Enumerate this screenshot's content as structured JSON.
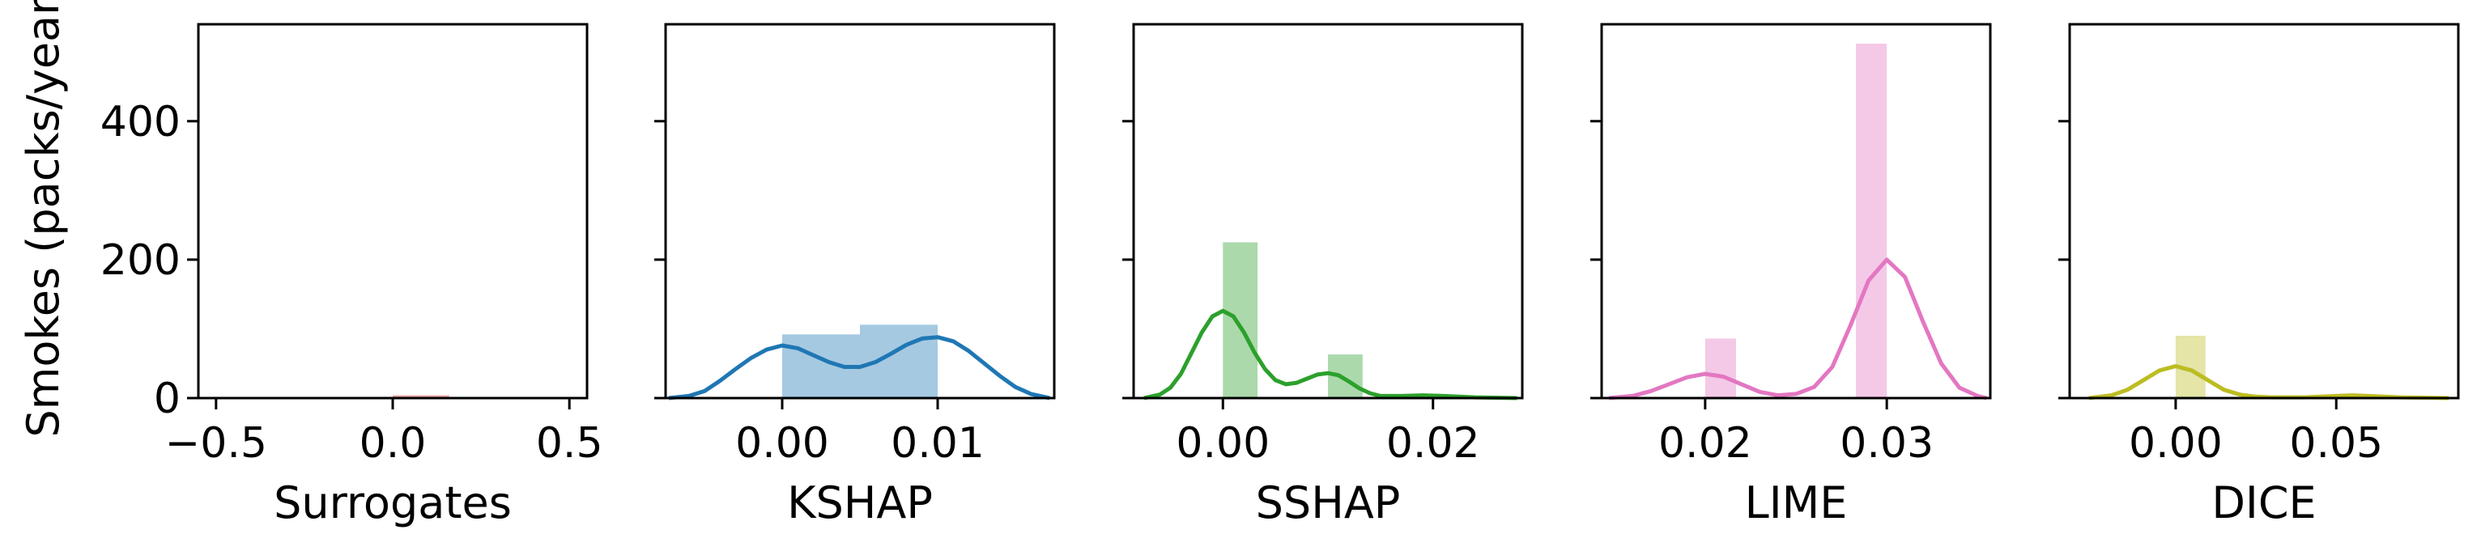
{
  "chart_data": {
    "type": "bar",
    "shared_ylabel": "Smokes (packs/year)",
    "ylim": [
      0,
      540
    ],
    "yticks": [
      0,
      200,
      400
    ],
    "panels": [
      {
        "xlabel": "Surrogates",
        "color": "#d62728",
        "xlim": [
          -0.55,
          0.55
        ],
        "xticks": [
          -0.5,
          0.0,
          0.5
        ],
        "xtick_labels": [
          "−0.5",
          "0.0",
          "0.5"
        ],
        "bars": [
          {
            "x0": 0.0,
            "x1": 0.16,
            "value": 4
          }
        ],
        "kde": []
      },
      {
        "xlabel": "KSHAP",
        "color": "#1f77b4",
        "xlim": [
          -0.0075,
          0.0175
        ],
        "xticks": [
          0.0,
          0.01
        ],
        "xtick_labels": [
          "0.00",
          "0.01"
        ],
        "bars": [
          {
            "x0": 0.0,
            "x1": 0.005,
            "value": 92
          },
          {
            "x0": 0.005,
            "x1": 0.01,
            "value": 106
          }
        ],
        "kde": [
          [
            -0.0073,
            0
          ],
          [
            -0.006,
            3
          ],
          [
            -0.005,
            10
          ],
          [
            -0.004,
            25
          ],
          [
            -0.003,
            42
          ],
          [
            -0.002,
            58
          ],
          [
            -0.001,
            70
          ],
          [
            0.0,
            76
          ],
          [
            0.001,
            72
          ],
          [
            0.002,
            62
          ],
          [
            0.003,
            52
          ],
          [
            0.004,
            45
          ],
          [
            0.005,
            45
          ],
          [
            0.006,
            52
          ],
          [
            0.007,
            64
          ],
          [
            0.008,
            77
          ],
          [
            0.009,
            86
          ],
          [
            0.01,
            88
          ],
          [
            0.011,
            82
          ],
          [
            0.012,
            68
          ],
          [
            0.013,
            50
          ],
          [
            0.014,
            32
          ],
          [
            0.015,
            16
          ],
          [
            0.016,
            6
          ],
          [
            0.0172,
            0
          ]
        ]
      },
      {
        "xlabel": "SSHAP",
        "color": "#2ca02c",
        "xlim": [
          -0.0085,
          0.0285
        ],
        "xticks": [
          0.0,
          0.02
        ],
        "xtick_labels": [
          "0.00",
          "0.02"
        ],
        "bars": [
          {
            "x0": 0.0,
            "x1": 0.0033,
            "value": 225
          },
          {
            "x0": 0.01,
            "x1": 0.0133,
            "value": 63
          }
        ],
        "kde": [
          [
            -0.0075,
            0
          ],
          [
            -0.006,
            5
          ],
          [
            -0.005,
            15
          ],
          [
            -0.004,
            35
          ],
          [
            -0.003,
            65
          ],
          [
            -0.002,
            95
          ],
          [
            -0.001,
            118
          ],
          [
            0.0,
            126
          ],
          [
            0.001,
            118
          ],
          [
            0.002,
            95
          ],
          [
            0.003,
            66
          ],
          [
            0.004,
            42
          ],
          [
            0.005,
            26
          ],
          [
            0.006,
            20
          ],
          [
            0.007,
            22
          ],
          [
            0.008,
            28
          ],
          [
            0.009,
            34
          ],
          [
            0.01,
            36
          ],
          [
            0.011,
            33
          ],
          [
            0.012,
            24
          ],
          [
            0.013,
            14
          ],
          [
            0.014,
            7
          ],
          [
            0.015,
            3
          ],
          [
            0.017,
            3
          ],
          [
            0.019,
            4
          ],
          [
            0.021,
            3
          ],
          [
            0.024,
            1
          ],
          [
            0.028,
            0
          ]
        ]
      },
      {
        "xlabel": "LIME",
        "color": "#e377c2",
        "xlim": [
          0.0143,
          0.0357
        ],
        "xticks": [
          0.02,
          0.03
        ],
        "xtick_labels": [
          "0.02",
          "0.03"
        ],
        "bars": [
          {
            "x0": 0.02,
            "x1": 0.0217,
            "value": 86
          },
          {
            "x0": 0.0283,
            "x1": 0.03,
            "value": 512
          }
        ],
        "kde": [
          [
            0.0147,
            0
          ],
          [
            0.016,
            3
          ],
          [
            0.017,
            10
          ],
          [
            0.018,
            20
          ],
          [
            0.019,
            30
          ],
          [
            0.02,
            35
          ],
          [
            0.021,
            31
          ],
          [
            0.022,
            20
          ],
          [
            0.023,
            9
          ],
          [
            0.024,
            4
          ],
          [
            0.025,
            6
          ],
          [
            0.026,
            16
          ],
          [
            0.027,
            45
          ],
          [
            0.028,
            105
          ],
          [
            0.029,
            170
          ],
          [
            0.03,
            200
          ],
          [
            0.031,
            175
          ],
          [
            0.032,
            110
          ],
          [
            0.033,
            50
          ],
          [
            0.034,
            15
          ],
          [
            0.035,
            3
          ],
          [
            0.0355,
            0
          ]
        ]
      },
      {
        "xlabel": "DICE",
        "color": "#bcbd22",
        "xlim": [
          -0.033,
          0.088
        ],
        "xticks": [
          0.0,
          0.05
        ],
        "xtick_labels": [
          "0.00",
          "0.05"
        ],
        "bars": [
          {
            "x0": 0.0,
            "x1": 0.0093,
            "value": 90
          }
        ],
        "kde": [
          [
            -0.027,
            0
          ],
          [
            -0.02,
            4
          ],
          [
            -0.015,
            12
          ],
          [
            -0.01,
            26
          ],
          [
            -0.005,
            40
          ],
          [
            0.0,
            46
          ],
          [
            0.005,
            40
          ],
          [
            0.01,
            26
          ],
          [
            0.015,
            12
          ],
          [
            0.02,
            5
          ],
          [
            0.025,
            2
          ],
          [
            0.03,
            1
          ],
          [
            0.04,
            1
          ],
          [
            0.05,
            3
          ],
          [
            0.055,
            4
          ],
          [
            0.06,
            3
          ],
          [
            0.07,
            1
          ],
          [
            0.085,
            0
          ]
        ]
      }
    ]
  }
}
